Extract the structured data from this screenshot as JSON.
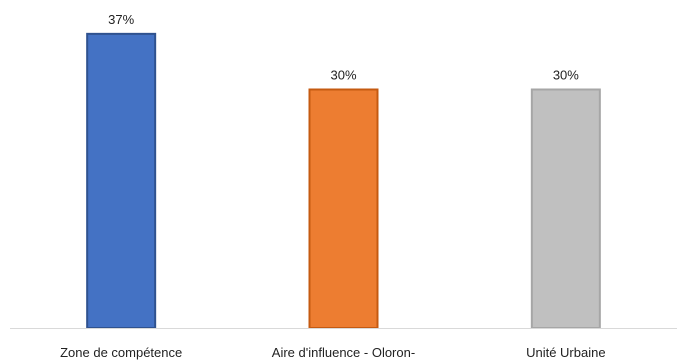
{
  "chart_data": {
    "type": "bar",
    "categories": [
      "Zone de compétence",
      "Aire d'influence - Oloron-",
      "Unité Urbaine"
    ],
    "values": [
      37,
      30,
      30
    ],
    "value_labels": [
      "37%",
      "30%",
      "30%"
    ],
    "colors": [
      "#4472C4",
      "#ED7D31",
      "#C0C0C0"
    ],
    "edge_colors": [
      "#2F528F",
      "#C55A11",
      "#A6A6A6"
    ],
    "ylim": [
      0,
      40
    ],
    "grid": false,
    "legend": "none",
    "title": "",
    "xlabel": "",
    "ylabel": ""
  }
}
